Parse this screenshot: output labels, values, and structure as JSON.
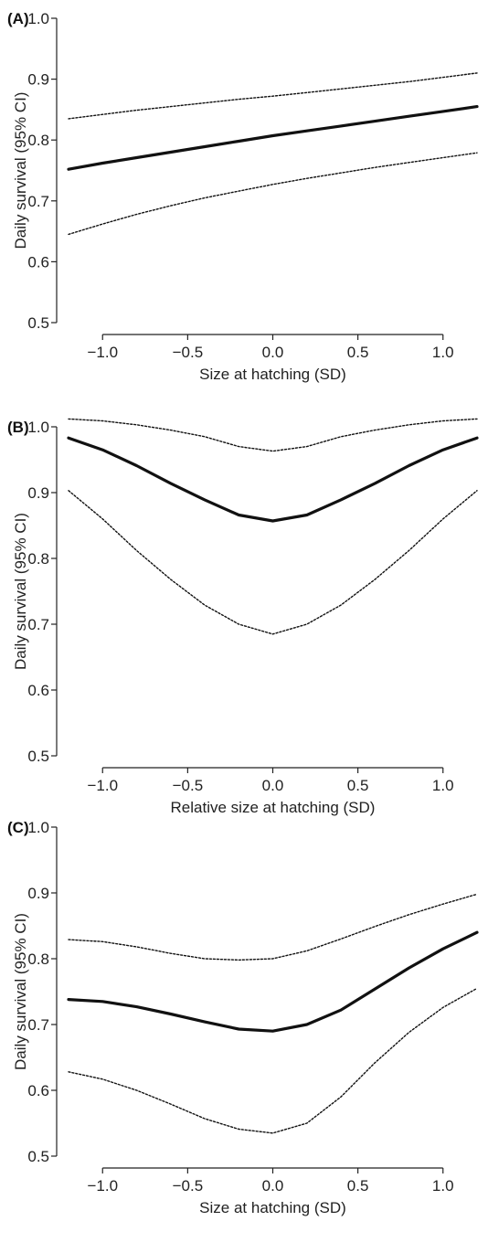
{
  "chart_data": [
    {
      "type": "line",
      "panel_label": "(A)",
      "xlabel": "Size at hatching (SD)",
      "ylabel": "Daily survival (95% CI)",
      "xlim": [
        -1.2,
        1.2
      ],
      "ylim": [
        0.5,
        1.0
      ],
      "x_ticks": [
        -1.0,
        -0.5,
        0.0,
        0.5,
        1.0
      ],
      "x_tick_labels": [
        "−1.0",
        "−0.5",
        "0.0",
        "0.5",
        "1.0"
      ],
      "y_ticks": [
        0.5,
        0.6,
        0.7,
        0.8,
        0.9,
        1.0
      ],
      "y_tick_labels": [
        "0.5",
        "0.6",
        "0.7",
        "0.8",
        "0.9",
        "1.0"
      ],
      "grid": false,
      "x": [
        -1.2,
        -1.0,
        -0.8,
        -0.6,
        -0.4,
        -0.2,
        0.0,
        0.2,
        0.4,
        0.6,
        0.8,
        1.0,
        1.2
      ],
      "series": [
        {
          "role": "estimate",
          "style": "solid",
          "values": [
            0.752,
            0.762,
            0.771,
            0.78,
            0.789,
            0.798,
            0.807,
            0.815,
            0.823,
            0.831,
            0.839,
            0.847,
            0.855
          ]
        },
        {
          "role": "upper_ci",
          "style": "dotted",
          "values": [
            0.835,
            0.842,
            0.849,
            0.855,
            0.861,
            0.867,
            0.872,
            0.878,
            0.884,
            0.89,
            0.896,
            0.903,
            0.91
          ]
        },
        {
          "role": "lower_ci",
          "style": "dotted",
          "values": [
            0.645,
            0.662,
            0.678,
            0.692,
            0.705,
            0.716,
            0.727,
            0.737,
            0.746,
            0.755,
            0.763,
            0.771,
            0.779
          ]
        }
      ]
    },
    {
      "type": "line",
      "panel_label": "(B)",
      "xlabel": "Relative size at hatching (SD)",
      "ylabel": "Daily survival (95% CI)",
      "xlim": [
        -1.2,
        1.2
      ],
      "ylim": [
        0.5,
        1.0
      ],
      "x_ticks": [
        -1.0,
        -0.5,
        0.0,
        0.5,
        1.0
      ],
      "x_tick_labels": [
        "−1.0",
        "−0.5",
        "0.0",
        "0.5",
        "1.0"
      ],
      "y_ticks": [
        0.5,
        0.6,
        0.7,
        0.8,
        0.9,
        1.0
      ],
      "y_tick_labels": [
        "0.5",
        "0.6",
        "0.7",
        "0.8",
        "0.9",
        "1.0"
      ],
      "grid": false,
      "x": [
        -1.2,
        -1.0,
        -0.8,
        -0.6,
        -0.4,
        -0.2,
        0.0,
        0.2,
        0.4,
        0.6,
        0.8,
        1.0,
        1.2
      ],
      "series": [
        {
          "role": "estimate",
          "style": "solid",
          "values": [
            0.983,
            0.965,
            0.941,
            0.914,
            0.889,
            0.866,
            0.857,
            0.866,
            0.889,
            0.914,
            0.941,
            0.965,
            0.983
          ]
        },
        {
          "role": "upper_ci",
          "style": "dotted",
          "values": [
            1.012,
            1.009,
            1.003,
            0.995,
            0.985,
            0.97,
            0.963,
            0.97,
            0.985,
            0.995,
            1.003,
            1.009,
            1.012
          ]
        },
        {
          "role": "lower_ci",
          "style": "dotted",
          "values": [
            0.903,
            0.86,
            0.812,
            0.768,
            0.729,
            0.7,
            0.685,
            0.7,
            0.729,
            0.768,
            0.812,
            0.86,
            0.903
          ]
        }
      ]
    },
    {
      "type": "line",
      "panel_label": "(C)",
      "xlabel": "Size at hatching (SD)",
      "ylabel": "Daily survival (95% CI)",
      "xlim": [
        -1.2,
        1.2
      ],
      "ylim": [
        0.5,
        1.0
      ],
      "x_ticks": [
        -1.0,
        -0.5,
        0.0,
        0.5,
        1.0
      ],
      "x_tick_labels": [
        "−1.0",
        "−0.5",
        "0.0",
        "0.5",
        "1.0"
      ],
      "y_ticks": [
        0.5,
        0.6,
        0.7,
        0.8,
        0.9,
        1.0
      ],
      "y_tick_labels": [
        "0.5",
        "0.6",
        "0.7",
        "0.8",
        "0.9",
        "1.0"
      ],
      "grid": false,
      "x": [
        -1.2,
        -1.0,
        -0.8,
        -0.6,
        -0.4,
        -0.2,
        0.0,
        0.2,
        0.4,
        0.6,
        0.8,
        1.0,
        1.2
      ],
      "series": [
        {
          "role": "estimate",
          "style": "solid",
          "values": [
            0.738,
            0.735,
            0.727,
            0.716,
            0.704,
            0.693,
            0.69,
            0.7,
            0.722,
            0.754,
            0.786,
            0.815,
            0.84
          ]
        },
        {
          "role": "upper_ci",
          "style": "dotted",
          "values": [
            0.829,
            0.826,
            0.818,
            0.808,
            0.8,
            0.798,
            0.8,
            0.812,
            0.83,
            0.849,
            0.867,
            0.883,
            0.898
          ]
        },
        {
          "role": "lower_ci",
          "style": "dotted",
          "values": [
            0.628,
            0.617,
            0.6,
            0.579,
            0.557,
            0.541,
            0.535,
            0.55,
            0.59,
            0.642,
            0.688,
            0.726,
            0.755
          ]
        }
      ]
    }
  ]
}
